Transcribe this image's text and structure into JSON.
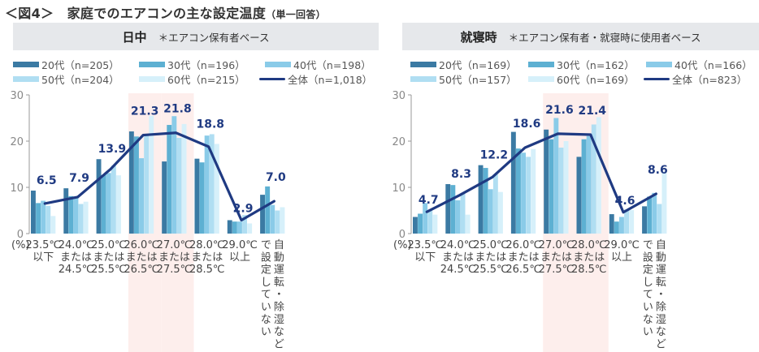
{
  "figure": {
    "title": "＜図4＞　家庭でのエアコンの主な設定温度",
    "subtitle": "（単一回答）"
  },
  "colors": {
    "20s": "#3b7aa3",
    "30s": "#5db0d2",
    "40s": "#8acbe8",
    "50s": "#b0def2",
    "60s": "#d6f0fa",
    "total": "#1f3a82",
    "highlight": "#fdeeec",
    "header_bg": "#e6e8eb"
  },
  "chart_data": [
    {
      "type": "bar",
      "title": "日中",
      "note": "＊エアコン保有者ベース",
      "ylabel": "(%)",
      "ylim": [
        0,
        30
      ],
      "yticks": [
        0,
        10,
        20,
        30
      ],
      "categories": [
        [
          "23.5℃",
          "以下"
        ],
        [
          "24.0℃",
          "または",
          "24.5℃"
        ],
        [
          "25.0℃",
          "または",
          "25.5℃"
        ],
        [
          "26.0℃",
          "または",
          "26.5℃"
        ],
        [
          "27.0℃",
          "または",
          "27.5℃"
        ],
        [
          "28.0℃",
          "または",
          "28.5℃"
        ],
        [
          "29.0℃",
          "以上"
        ],
        [
          "自動運転・除湿など",
          "で設定していない"
        ]
      ],
      "highlight_categories": [
        3,
        4
      ],
      "series": [
        {
          "key": "20s",
          "name": "20代（n=205）",
          "values": [
            9.3,
            9.8,
            16.1,
            22.1,
            15.6,
            16.2,
            2.9,
            8.4
          ]
        },
        {
          "key": "30s",
          "name": "30代（n=196）",
          "values": [
            6.6,
            8.1,
            12.7,
            21.0,
            23.5,
            15.4,
            2.6,
            10.2
          ]
        },
        {
          "key": "40s",
          "name": "40代（n=198）",
          "values": [
            7.1,
            8.0,
            13.1,
            16.3,
            25.4,
            21.2,
            2.6,
            6.2
          ]
        },
        {
          "key": "50s",
          "name": "50代（n=204）",
          "values": [
            6.0,
            6.4,
            14.7,
            21.4,
            20.7,
            21.5,
            4.0,
            5.0
          ]
        },
        {
          "key": "60s",
          "name": "60代（n=215）",
          "values": [
            3.8,
            6.9,
            12.6,
            25.5,
            23.7,
            19.4,
            2.2,
            5.7
          ]
        }
      ],
      "line": {
        "key": "total",
        "name": "全体（n=1,018）",
        "values": [
          6.5,
          7.9,
          13.9,
          21.3,
          21.8,
          18.8,
          2.9,
          7.0
        ]
      },
      "data_labels": [
        "6.5",
        "7.9",
        "13.9",
        "21.3",
        "21.8",
        "18.8",
        "2.9",
        "7.0"
      ],
      "legend_position": "top"
    },
    {
      "type": "bar",
      "title": "就寝時",
      "note": "＊エアコン保有者・就寝時に使用者ベース",
      "ylabel": "(%)",
      "ylim": [
        0,
        30
      ],
      "yticks": [
        0,
        10,
        20,
        30
      ],
      "categories": [
        [
          "23.5℃",
          "以下"
        ],
        [
          "24.0℃",
          "または",
          "24.5℃"
        ],
        [
          "25.0℃",
          "または",
          "25.5℃"
        ],
        [
          "26.0℃",
          "または",
          "26.5℃"
        ],
        [
          "27.0℃",
          "または",
          "27.5℃"
        ],
        [
          "28.0℃",
          "または",
          "28.5℃"
        ],
        [
          "29.0℃",
          "以上"
        ],
        [
          "自動運転・除湿など",
          "で設定していない"
        ]
      ],
      "highlight_categories": [
        4,
        5
      ],
      "series": [
        {
          "key": "20s",
          "name": "20代（n=169）",
          "values": [
            3.6,
            10.7,
            14.8,
            22.0,
            22.5,
            16.6,
            4.2,
            5.9
          ]
        },
        {
          "key": "30s",
          "name": "30代（n=162）",
          "values": [
            4.3,
            10.5,
            14.2,
            18.4,
            20.4,
            20.4,
            2.6,
            8.0
          ]
        },
        {
          "key": "40s",
          "name": "40代（n=166）",
          "values": [
            6.6,
            7.2,
            9.6,
            17.5,
            25.0,
            21.1,
            3.6,
            8.8
          ]
        },
        {
          "key": "50s",
          "name": "50代（n=157）",
          "values": [
            5.0,
            8.6,
            12.8,
            16.6,
            18.6,
            23.6,
            5.2,
            6.4
          ]
        },
        {
          "key": "60s",
          "name": "60代（n=169）",
          "values": [
            4.1,
            4.1,
            9.0,
            18.3,
            20.0,
            25.2,
            5.1,
            13.4
          ]
        }
      ],
      "line": {
        "key": "total",
        "name": "全体（n=823）",
        "values": [
          4.7,
          8.3,
          12.2,
          18.6,
          21.6,
          21.4,
          4.6,
          8.6
        ]
      },
      "data_labels": [
        "4.7",
        "8.3",
        "12.2",
        "18.6",
        "21.6",
        "21.4",
        "4.6",
        "8.6"
      ],
      "legend_position": "top"
    }
  ]
}
